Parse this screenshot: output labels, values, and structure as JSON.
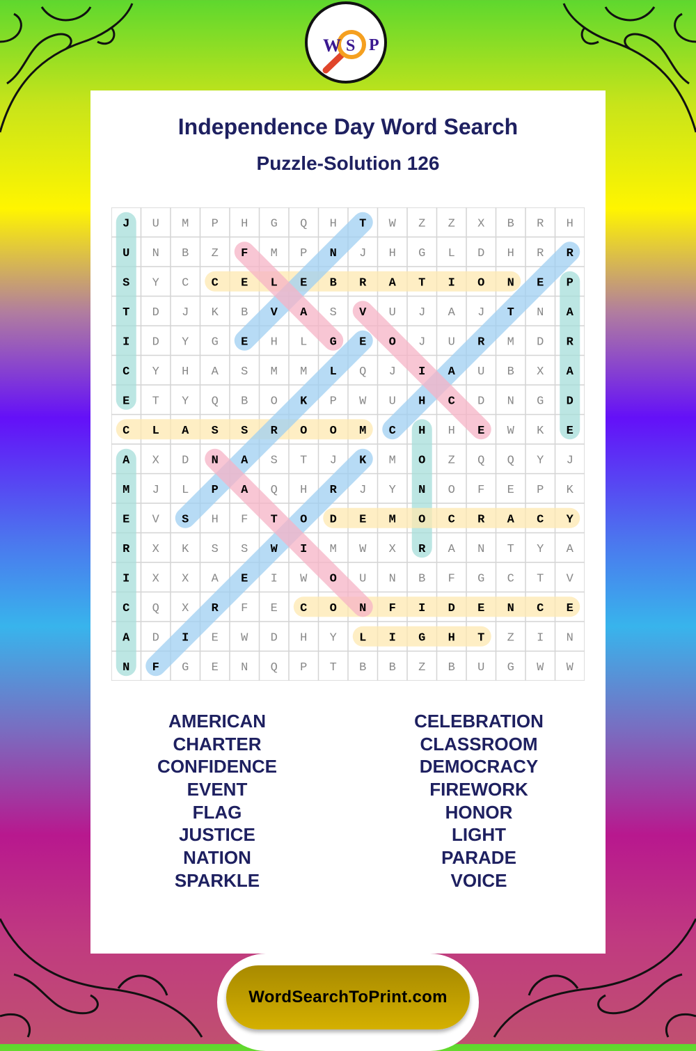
{
  "logo": {
    "letters": [
      "W",
      "S",
      "P"
    ]
  },
  "title": "Independence Day Word Search",
  "subtitle": "Puzzle-Solution 126",
  "grid": [
    "JUMPHGQHTWZZXBRH",
    "UNBZFMPNJHGLDHRR",
    "SYCCELEBRATIONEP",
    "TDJKBVASVUJAJTNA",
    "IDYGEHLGEOJURMDR",
    "CYHASMMLQJIAUBXA",
    "ETYQBOKPWUHCDNGD",
    "CLASSROOMCHHEWKE",
    "AXDNASTJKMOZQQYJ",
    "MJLPAQHRJYNOFEPK",
    "EVSHFTODEMOCRACY",
    "RXKSSWIMWXRANTYA",
    "IXXAEIWOUNBFGCTV",
    "CQXRFECONFIDENCE",
    "ADIEWDHYLIGHTZIN",
    "NFGENQPTBBZBUGWW"
  ],
  "colors": {
    "teal": "#a6ddd9",
    "yellow": "#fde8b0",
    "blue": "#9fcff2",
    "pink": "#f6b3c5",
    "text": "#1e2060"
  },
  "solutions": [
    {
      "word": "JUSTICE",
      "from": [
        0,
        0
      ],
      "to": [
        6,
        0
      ],
      "color": "teal"
    },
    {
      "word": "AMERICAN",
      "from": [
        8,
        0
      ],
      "to": [
        15,
        0
      ],
      "color": "teal"
    },
    {
      "word": "PARADE",
      "from": [
        2,
        15
      ],
      "to": [
        7,
        15
      ],
      "color": "teal"
    },
    {
      "word": "HONOR",
      "from": [
        7,
        10
      ],
      "to": [
        11,
        10
      ],
      "color": "teal"
    },
    {
      "word": "CELEBRATION",
      "from": [
        2,
        3
      ],
      "to": [
        2,
        13
      ],
      "color": "yellow"
    },
    {
      "word": "CLASSROOM",
      "from": [
        7,
        0
      ],
      "to": [
        7,
        8
      ],
      "color": "yellow"
    },
    {
      "word": "DEMOCRACY",
      "from": [
        10,
        7
      ],
      "to": [
        10,
        15
      ],
      "color": "yellow"
    },
    {
      "word": "CONFIDENCE",
      "from": [
        13,
        6
      ],
      "to": [
        13,
        15
      ],
      "color": "yellow"
    },
    {
      "word": "LIGHT",
      "from": [
        14,
        8
      ],
      "to": [
        14,
        12
      ],
      "color": "yellow"
    },
    {
      "word": "EVENT",
      "from": [
        4,
        4
      ],
      "to": [
        0,
        8
      ],
      "color": "blue"
    },
    {
      "word": "FIREWORK",
      "from": [
        15,
        1
      ],
      "to": [
        8,
        8
      ],
      "color": "blue"
    },
    {
      "word": "SPARKLE",
      "from": [
        10,
        2
      ],
      "to": [
        4,
        8
      ],
      "color": "blue"
    },
    {
      "word": "CHARTER",
      "from": [
        7,
        9
      ],
      "to": [
        1,
        15
      ],
      "color": "blue"
    },
    {
      "word": "FLAG",
      "from": [
        1,
        4
      ],
      "to": [
        4,
        7
      ],
      "color": "pink"
    },
    {
      "word": "VOICE",
      "from": [
        3,
        8
      ],
      "to": [
        7,
        12
      ],
      "color": "pink"
    },
    {
      "word": "NATION",
      "from": [
        8,
        3
      ],
      "to": [
        13,
        8
      ],
      "color": "pink"
    }
  ],
  "words_left": [
    "AMERICAN",
    "CHARTER",
    "CONFIDENCE",
    "EVENT",
    "FLAG",
    "JUSTICE",
    "NATION",
    "SPARKLE"
  ],
  "words_right": [
    "CELEBRATION",
    "CLASSROOM",
    "DEMOCRACY",
    "FIREWORK",
    "HONOR",
    "LIGHT",
    "PARADE",
    "VOICE"
  ],
  "footer": {
    "site": "WordSearchToPrint.com"
  }
}
